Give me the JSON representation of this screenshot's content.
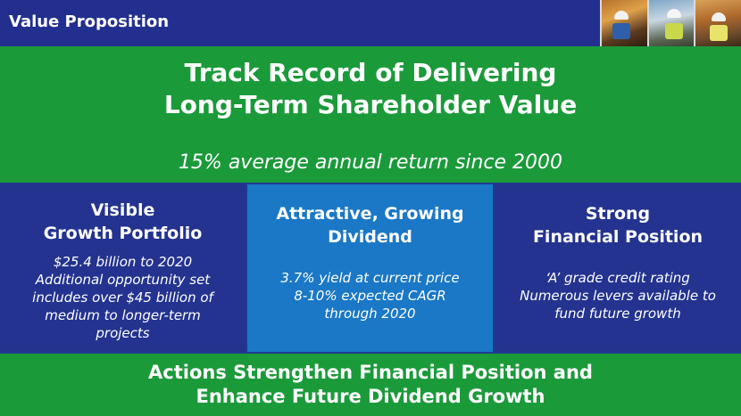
{
  "header": {
    "title": "Value Proposition"
  },
  "banner": {
    "title_line1": "Track Record of Delivering",
    "title_line2": "Long-Term Shareholder Value",
    "subtitle": "15% average annual return since 2000"
  },
  "columns": [
    {
      "heading_line1": "Visible",
      "heading_line2": "Growth Portfolio",
      "body": [
        "$25.4 billion to 2020",
        "Additional opportunity set",
        "includes over $45 billion of",
        "medium to longer-term",
        "projects"
      ]
    },
    {
      "heading_line1": "Attractive, Growing",
      "heading_line2": "Dividend",
      "body": [
        "3.7% yield at current price",
        "8-10% expected CAGR",
        "through 2020"
      ]
    },
    {
      "heading_line1": "Strong",
      "heading_line2": "Financial Position",
      "body": [
        "‘A’ grade credit rating",
        "Numerous levers available to",
        "fund future growth"
      ]
    }
  ],
  "footer": {
    "line1": "Actions Strengthen Financial Position and",
    "line2": "Enhance Future Dividend Growth"
  },
  "colors": {
    "navy": "#24338f",
    "green": "#1b9a3a",
    "blue": "#1a78c6"
  }
}
